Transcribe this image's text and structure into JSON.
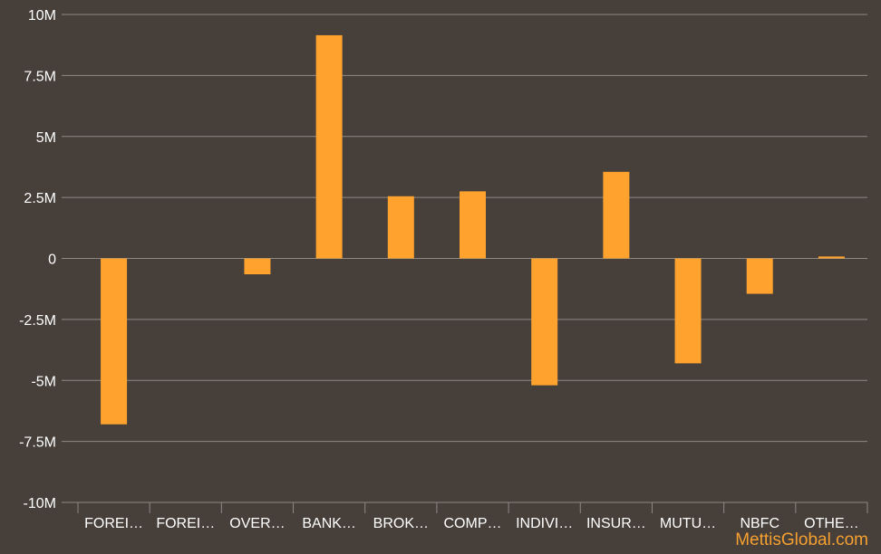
{
  "chart_data": {
    "type": "bar",
    "title": "",
    "xlabel": "",
    "ylabel": "",
    "categories": [
      "FOREI…",
      "FOREI…",
      "OVER…",
      "BANK…",
      "BROK…",
      "COMP…",
      "INDIVI…",
      "INSUR…",
      "MUTU…",
      "NBFC",
      "OTHE…"
    ],
    "values": [
      -6800000,
      0,
      -650000,
      9150000,
      2550000,
      2750000,
      -5200000,
      3550000,
      -4300000,
      -1450000,
      80000
    ],
    "ylim": [
      -10000000,
      10000000
    ],
    "y_ticks": [
      10000000,
      7500000,
      5000000,
      2500000,
      0,
      -2500000,
      -5000000,
      -7500000,
      -10000000
    ],
    "y_tick_labels": [
      "10M",
      "7.5M",
      "5M",
      "2.5M",
      "0",
      "-2.5M",
      "-5M",
      "-7.5M",
      "-10M"
    ],
    "grid": true,
    "legend": "none",
    "colors": {
      "bar": "#ffa32e",
      "background": "#463f3a",
      "grid": "#8f8984",
      "text": "#ffffff",
      "watermark": "#f7a030"
    }
  },
  "watermark": "MettisGlobal.com"
}
